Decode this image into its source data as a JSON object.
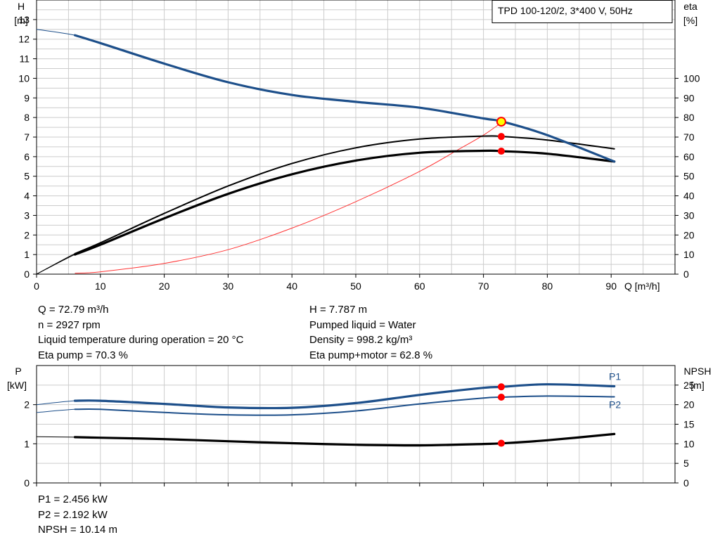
{
  "title": "TPD 100-120/2, 3*400 V, 50Hz",
  "colors": {
    "head": "#1d4f8a",
    "eta": "#000000",
    "system": "#ff3333",
    "point": "#ff0000",
    "point_hl": "#ffff00",
    "grid": "#cccccc"
  },
  "chart_data": [
    {
      "type": "line",
      "title": "TPD 100-120/2, 3*400 V, 50Hz",
      "xlabel": "Q [m³/h]",
      "ylabel": "H\n[m]",
      "ylabel_right": "eta\n[%]",
      "xlim": [
        0,
        100
      ],
      "ylim": [
        0,
        14
      ],
      "ylim_right": [
        0,
        140
      ],
      "x_ticks": [
        0,
        10,
        20,
        30,
        40,
        50,
        60,
        70,
        80,
        90
      ],
      "y_ticks": [
        0,
        1,
        2,
        3,
        4,
        5,
        6,
        7,
        8,
        9,
        10,
        11,
        12,
        13
      ],
      "y_right_ticks": [
        0,
        10,
        20,
        30,
        40,
        50,
        60,
        70,
        80,
        90,
        100
      ],
      "grid": true,
      "series": [
        {
          "key": "head",
          "axis": "left",
          "x": [
            0,
            6,
            10,
            20,
            30,
            40,
            50,
            60,
            70,
            73,
            80,
            90.5
          ],
          "y": [
            12.5,
            12.2,
            11.8,
            10.75,
            9.8,
            9.15,
            8.8,
            8.5,
            7.95,
            7.787,
            7.1,
            5.75
          ]
        },
        {
          "key": "eta_pump",
          "axis": "right",
          "x": [
            0,
            6,
            10,
            20,
            30,
            40,
            50,
            60,
            70,
            73,
            80,
            90.5
          ],
          "y": [
            0,
            10.5,
            16,
            31,
            45,
            56.5,
            64.5,
            69,
            70.5,
            70.3,
            68.5,
            64
          ]
        },
        {
          "key": "eta_total",
          "axis": "right",
          "x": [
            0,
            6,
            10,
            20,
            30,
            40,
            50,
            60,
            70,
            73,
            80,
            90.5
          ],
          "y": [
            0,
            10,
            15,
            28.5,
            41,
            51,
            58,
            62,
            63,
            62.8,
            61.5,
            57.5
          ]
        },
        {
          "key": "system",
          "axis": "left",
          "x": [
            6,
            10,
            20,
            30,
            40,
            50,
            60,
            66,
            70,
            73
          ],
          "y": [
            0.05,
            0.12,
            0.55,
            1.25,
            2.35,
            3.7,
            5.25,
            6.35,
            7.1,
            7.787
          ]
        }
      ],
      "duty_point": {
        "q": 72.79,
        "h": 7.787,
        "eta_pump": 70.3,
        "eta_total": 62.8
      }
    },
    {
      "type": "line",
      "ylabel": "P\n[kW]",
      "ylabel_right": "NPSH\n[m]",
      "xlim": [
        0,
        100
      ],
      "ylim": [
        0,
        3
      ],
      "ylim_right": [
        0,
        30
      ],
      "y_ticks": [
        0,
        1,
        2
      ],
      "y_right_ticks": [
        0,
        5,
        10,
        15,
        20,
        25
      ],
      "grid": true,
      "series": [
        {
          "key": "P1",
          "name": "P1",
          "axis": "left",
          "x": [
            0,
            6,
            10,
            20,
            30,
            40,
            50,
            60,
            70,
            73,
            80,
            90.5
          ],
          "y": [
            2.0,
            2.1,
            2.1,
            2.02,
            1.93,
            1.92,
            2.04,
            2.25,
            2.43,
            2.456,
            2.52,
            2.47
          ]
        },
        {
          "key": "P2",
          "name": "P2",
          "axis": "left",
          "x": [
            0,
            6,
            10,
            20,
            30,
            40,
            50,
            60,
            70,
            73,
            80,
            90.5
          ],
          "y": [
            1.8,
            1.88,
            1.88,
            1.8,
            1.74,
            1.74,
            1.84,
            2.02,
            2.17,
            2.192,
            2.22,
            2.2
          ]
        },
        {
          "key": "NPSH",
          "axis": "right",
          "x": [
            0,
            6,
            10,
            20,
            30,
            40,
            50,
            60,
            70,
            73,
            80,
            90.5
          ],
          "y": [
            11.8,
            11.7,
            11.55,
            11.2,
            10.65,
            10.15,
            9.75,
            9.6,
            9.95,
            10.14,
            10.9,
            12.5
          ]
        }
      ],
      "duty_point": {
        "q": 72.79,
        "p1": 2.456,
        "p2": 2.192,
        "npsh": 10.14
      }
    }
  ],
  "info_top_left": [
    "Q = 72.79 m³/h",
    "n = 2927 rpm",
    "Liquid temperature during operation = 20 °C",
    "Eta pump = 70.3 %"
  ],
  "info_top_right": [
    "H = 7.787 m",
    "Pumped liquid = Water",
    "Density = 998.2 kg/m³",
    "Eta pump+motor = 62.8 %"
  ],
  "info_bottom_left": [
    "P1 = 2.456 kW",
    "P2 = 2.192 kW",
    "NPSH = 10.14 m"
  ]
}
